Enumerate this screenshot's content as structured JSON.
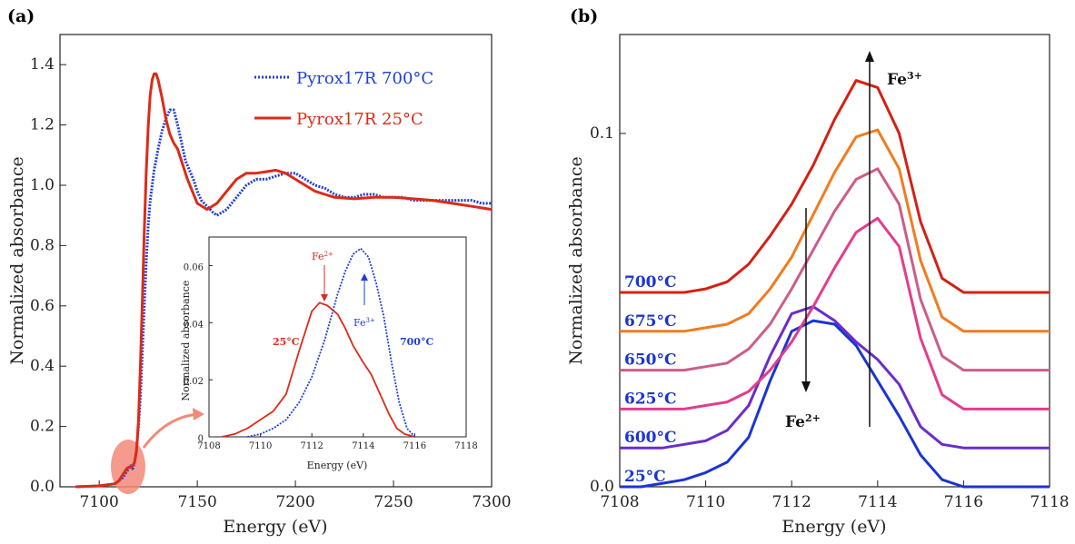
{
  "panel_a_label": "(a)",
  "panel_b_label": "(b)",
  "colors": {
    "blue": "#1f3fd6",
    "red": "#dd2a17",
    "highlight": "#f28a7a",
    "axis": "#222222"
  },
  "chart_data": [
    {
      "id": "a",
      "type": "line",
      "xlabel": "Energy (eV)",
      "ylabel": "Normalized absorbance",
      "xlim": [
        7080,
        7300
      ],
      "ylim": [
        0,
        1.5
      ],
      "xticks": [
        "7100",
        "7150",
        "7200",
        "7250",
        "7300"
      ],
      "yticks": [
        "0.0",
        "0.2",
        "0.4",
        "0.6",
        "0.8",
        "1.0",
        "1.2",
        "1.4"
      ],
      "xtick_values": [
        7100,
        7150,
        7200,
        7250,
        7300
      ],
      "ytick_values": [
        0,
        0.2,
        0.4,
        0.6,
        0.8,
        1.0,
        1.2,
        1.4
      ],
      "grid": false,
      "legend_position": "top-right",
      "series": [
        {
          "name": "Pyrox17R 700°C",
          "style": "dotted",
          "color": "#1f3fd6",
          "x": [
            7088,
            7100,
            7108,
            7112,
            7114,
            7115,
            7116,
            7117,
            7118,
            7119,
            7120,
            7121,
            7122,
            7123,
            7124,
            7125,
            7126,
            7128,
            7130,
            7132,
            7134,
            7136,
            7138,
            7140,
            7142,
            7144,
            7146,
            7148,
            7150,
            7152,
            7155,
            7158,
            7160,
            7165,
            7170,
            7175,
            7180,
            7185,
            7190,
            7195,
            7200,
            7205,
            7210,
            7215,
            7220,
            7225,
            7230,
            7235,
            7240,
            7245,
            7250,
            7255,
            7260,
            7265,
            7270,
            7275,
            7280,
            7285,
            7290,
            7295,
            7300
          ],
          "y": [
            0.0,
            0.003,
            0.01,
            0.03,
            0.05,
            0.06,
            0.07,
            0.06,
            0.08,
            0.12,
            0.2,
            0.3,
            0.45,
            0.6,
            0.75,
            0.87,
            0.95,
            1.05,
            1.12,
            1.18,
            1.22,
            1.25,
            1.25,
            1.2,
            1.14,
            1.08,
            1.05,
            1.02,
            0.98,
            0.95,
            0.93,
            0.91,
            0.9,
            0.92,
            0.96,
            1.0,
            1.02,
            1.02,
            1.03,
            1.04,
            1.04,
            1.02,
            1.0,
            0.99,
            0.97,
            0.96,
            0.96,
            0.97,
            0.97,
            0.96,
            0.96,
            0.96,
            0.95,
            0.95,
            0.95,
            0.95,
            0.95,
            0.95,
            0.95,
            0.94,
            0.94
          ]
        },
        {
          "name": "Pyrox17R 25°C",
          "style": "solid",
          "color": "#dd2a17",
          "x": [
            7088,
            7100,
            7108,
            7110,
            7112,
            7113,
            7114,
            7115,
            7116,
            7117,
            7118,
            7119,
            7120,
            7121,
            7122,
            7123,
            7124,
            7125,
            7126,
            7127,
            7128,
            7129,
            7130,
            7132,
            7134,
            7136,
            7138,
            7140,
            7145,
            7150,
            7155,
            7160,
            7165,
            7170,
            7175,
            7180,
            7185,
            7190,
            7195,
            7200,
            7205,
            7210,
            7215,
            7220,
            7230,
            7240,
            7250,
            7260,
            7270,
            7280,
            7290,
            7300
          ],
          "y": [
            0.0,
            0.003,
            0.01,
            0.02,
            0.04,
            0.05,
            0.06,
            0.065,
            0.065,
            0.07,
            0.08,
            0.12,
            0.22,
            0.4,
            0.62,
            0.85,
            1.05,
            1.2,
            1.3,
            1.35,
            1.37,
            1.37,
            1.35,
            1.29,
            1.22,
            1.17,
            1.14,
            1.12,
            1.02,
            0.94,
            0.92,
            0.94,
            0.98,
            1.02,
            1.04,
            1.04,
            1.045,
            1.05,
            1.04,
            1.02,
            1.0,
            0.98,
            0.97,
            0.96,
            0.955,
            0.96,
            0.96,
            0.955,
            0.95,
            0.94,
            0.93,
            0.92
          ]
        }
      ]
    },
    {
      "id": "a-inset",
      "type": "line",
      "xlabel": "Energy (eV)",
      "ylabel": "Normalized absorbance",
      "xlim": [
        7108,
        7118
      ],
      "ylim": [
        0,
        0.07
      ],
      "xticks": [
        "7108",
        "7110",
        "7112",
        "7114",
        "7116",
        "7118"
      ],
      "yticks": [
        "0",
        "0.02",
        "0.04",
        "0.06"
      ],
      "xtick_values": [
        7108,
        7110,
        7112,
        7114,
        7116,
        7118
      ],
      "ytick_values": [
        0,
        0.02,
        0.04,
        0.06
      ],
      "annotations": {
        "fe2": "Fe",
        "fe2_sup": "2+",
        "fe3": "Fe",
        "fe3_sup": "3+",
        "label_25": "25°C",
        "label_700": "700°C"
      },
      "series": [
        {
          "name": "25°C",
          "style": "solid",
          "color": "#dd2a17",
          "x": [
            7108.5,
            7109,
            7109.5,
            7110,
            7110.5,
            7111,
            7111.5,
            7112,
            7112.3,
            7112.6,
            7113,
            7113.3,
            7113.6,
            7114,
            7114.3,
            7114.6,
            7115,
            7115.3,
            7115.6,
            7116
          ],
          "y": [
            0.0,
            0.001,
            0.003,
            0.006,
            0.009,
            0.015,
            0.03,
            0.044,
            0.047,
            0.046,
            0.043,
            0.038,
            0.032,
            0.026,
            0.022,
            0.016,
            0.008,
            0.003,
            0.001,
            0.0
          ]
        },
        {
          "name": "700°C",
          "style": "dotted",
          "color": "#1f3fd6",
          "x": [
            7109.5,
            7110,
            7110.5,
            7111,
            7111.5,
            7112,
            7112.5,
            7113,
            7113.3,
            7113.6,
            7113.9,
            7114.2,
            7114.5,
            7114.8,
            7115.1,
            7115.4,
            7115.7,
            7116
          ],
          "y": [
            0.0,
            0.001,
            0.003,
            0.006,
            0.012,
            0.021,
            0.034,
            0.05,
            0.058,
            0.064,
            0.066,
            0.063,
            0.054,
            0.042,
            0.026,
            0.012,
            0.003,
            0.0
          ]
        }
      ]
    },
    {
      "id": "b",
      "type": "line",
      "xlabel": "Energy (eV)",
      "ylabel": "Normalized absorbance",
      "xlim": [
        7108,
        7118
      ],
      "ylim": [
        0,
        0.128
      ],
      "xticks": [
        "7108",
        "7110",
        "7112",
        "7114",
        "7116",
        "7118"
      ],
      "yticks": [
        "0.0",
        "0.1"
      ],
      "xtick_values": [
        7108,
        7110,
        7112,
        7114,
        7116,
        7118
      ],
      "ytick_values": [
        0,
        0.1
      ],
      "grid": false,
      "annotations": {
        "fe3": "Fe",
        "fe3_sup": "3+",
        "fe2": "Fe",
        "fe2_sup": "2+"
      },
      "series": [
        {
          "name": "25°C",
          "color": "#1c34d2",
          "offset": 0.0,
          "x": [
            7108,
            7108.5,
            7109,
            7109.5,
            7110,
            7110.5,
            7111,
            7111.5,
            7112,
            7112.5,
            7113,
            7113.5,
            7114,
            7114.5,
            7115,
            7115.5,
            7116,
            7116.5,
            7117,
            7117.5,
            7118
          ],
          "y": [
            0.0,
            0.0,
            0.001,
            0.002,
            0.004,
            0.007,
            0.014,
            0.03,
            0.044,
            0.047,
            0.046,
            0.04,
            0.03,
            0.02,
            0.009,
            0.002,
            0.0,
            0.0,
            0.0,
            0.0,
            0.0
          ]
        },
        {
          "name": "600°C",
          "color": "#6a2dc8",
          "offset": 0.011,
          "x": [
            7108,
            7108.5,
            7109,
            7109.5,
            7110,
            7110.5,
            7111,
            7111.5,
            7112,
            7112.5,
            7113,
            7113.5,
            7114,
            7114.5,
            7115,
            7115.5,
            7116,
            7116.5,
            7117,
            7117.5,
            7118
          ],
          "y": [
            0.0,
            0.0,
            0.0,
            0.001,
            0.002,
            0.005,
            0.012,
            0.026,
            0.038,
            0.04,
            0.036,
            0.03,
            0.025,
            0.018,
            0.006,
            0.001,
            0.0,
            0.0,
            0.0,
            0.0,
            0.0
          ]
        },
        {
          "name": "625°C",
          "color": "#e33c8c",
          "offset": 0.022,
          "x": [
            7108,
            7108.5,
            7109,
            7109.5,
            7110,
            7110.5,
            7111,
            7111.5,
            7112,
            7112.5,
            7113,
            7113.5,
            7114,
            7114.5,
            7115,
            7115.5,
            7116,
            7116.5,
            7117,
            7117.5,
            7118
          ],
          "y": [
            0.0,
            0.0,
            0.0,
            0.0,
            0.001,
            0.002,
            0.005,
            0.011,
            0.019,
            0.029,
            0.04,
            0.05,
            0.054,
            0.046,
            0.02,
            0.004,
            0.0,
            0.0,
            0.0,
            0.0,
            0.0
          ]
        },
        {
          "name": "650°C",
          "color": "#cc5c8a",
          "offset": 0.033,
          "x": [
            7108,
            7108.5,
            7109,
            7109.5,
            7110,
            7110.5,
            7111,
            7111.5,
            7112,
            7112.5,
            7113,
            7113.5,
            7114,
            7114.5,
            7115,
            7115.5,
            7116,
            7116.5,
            7117,
            7117.5,
            7118
          ],
          "y": [
            0.0,
            0.0,
            0.0,
            0.0,
            0.001,
            0.002,
            0.006,
            0.013,
            0.023,
            0.034,
            0.045,
            0.054,
            0.057,
            0.047,
            0.02,
            0.004,
            0.0,
            0.0,
            0.0,
            0.0,
            0.0
          ]
        },
        {
          "name": "675°C",
          "color": "#f07c1f",
          "offset": 0.044,
          "x": [
            7108,
            7108.5,
            7109,
            7109.5,
            7110,
            7110.5,
            7111,
            7111.5,
            7112,
            7112.5,
            7113,
            7113.5,
            7114,
            7114.5,
            7115,
            7115.5,
            7116,
            7116.5,
            7117,
            7117.5,
            7118
          ],
          "y": [
            0.0,
            0.0,
            0.0,
            0.0,
            0.001,
            0.002,
            0.005,
            0.012,
            0.021,
            0.033,
            0.045,
            0.055,
            0.057,
            0.046,
            0.02,
            0.004,
            0.0,
            0.0,
            0.0,
            0.0,
            0.0
          ]
        },
        {
          "name": "700°C",
          "color": "#d42014",
          "offset": 0.055,
          "x": [
            7108,
            7108.5,
            7109,
            7109.5,
            7110,
            7110.5,
            7111,
            7111.5,
            7112,
            7112.5,
            7113,
            7113.5,
            7114,
            7114.5,
            7115,
            7115.5,
            7116,
            7116.5,
            7117,
            7117.5,
            7118
          ],
          "y": [
            0.0,
            0.0,
            0.0,
            0.0,
            0.001,
            0.003,
            0.008,
            0.016,
            0.025,
            0.036,
            0.049,
            0.06,
            0.058,
            0.045,
            0.02,
            0.004,
            0.0,
            0.0,
            0.0,
            0.0,
            0.0
          ]
        }
      ]
    }
  ]
}
